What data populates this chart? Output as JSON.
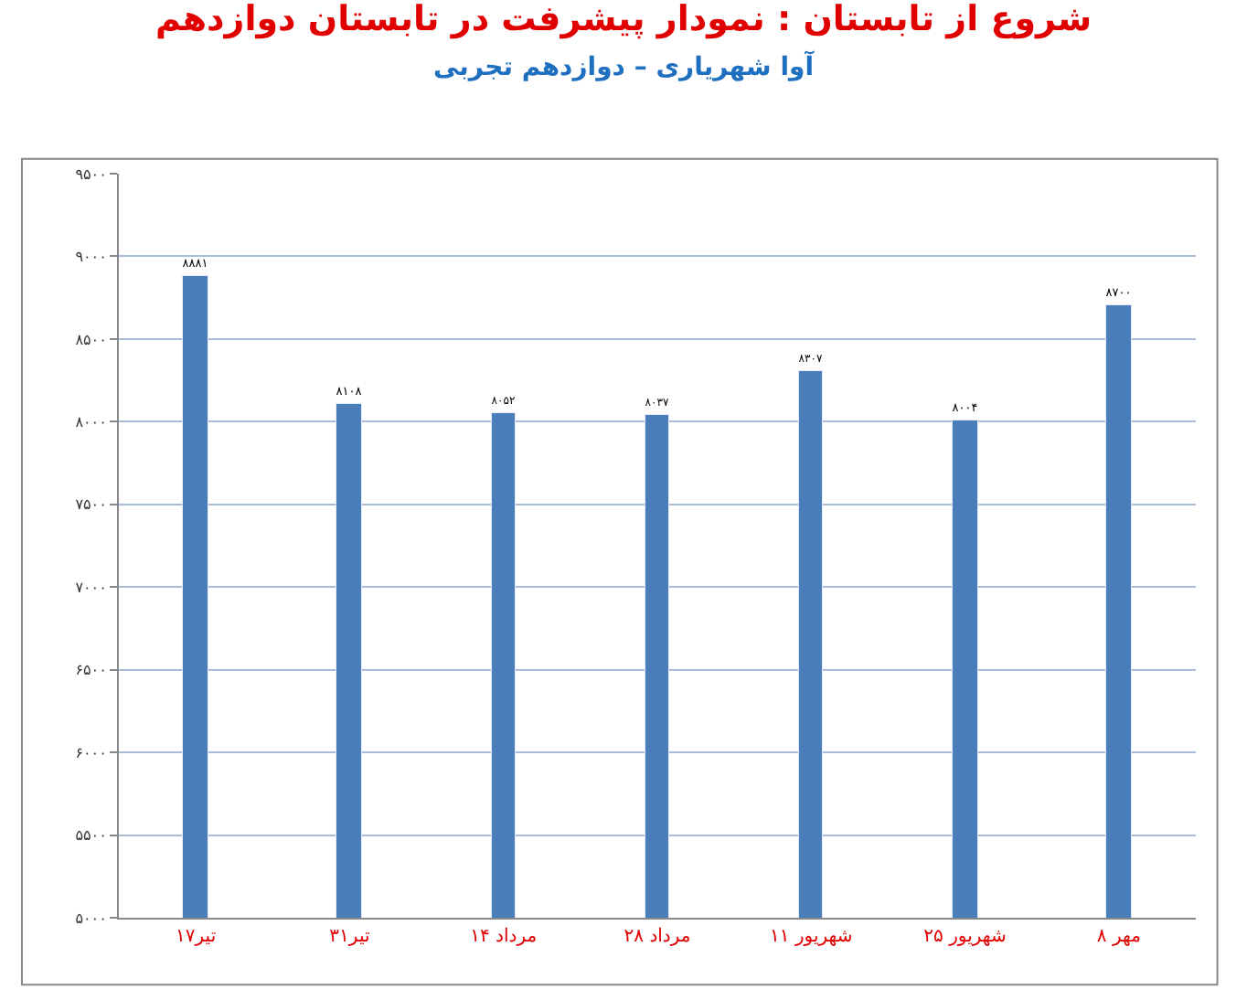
{
  "chart_data": {
    "type": "bar",
    "title": "شروع از تابستان : نمودار پیشرفت در تابستان دوازدهم",
    "subtitle": "آوا شهریاری – دوازدهم تجربی",
    "categories": [
      "۱۷تیر",
      "۳۱تیر",
      "۱۴ مرداد",
      "۲۸ مرداد",
      "۱۱ شهریور",
      "۲۵ شهریور",
      "۸ مهر"
    ],
    "values": [
      8881,
      8108,
      8052,
      8037,
      8307,
      8004,
      8700
    ],
    "value_labels": [
      "۸۸۸۱",
      "۸۱۰۸",
      "۸۰۵۲",
      "۸۰۳۷",
      "۸۳۰۷",
      "۸۰۰۴",
      "۸۷۰۰"
    ],
    "color": "#4a7ebb",
    "ylim": [
      5000,
      9500
    ],
    "yticks": [
      {
        "value": 5000,
        "label": "۵۰۰۰"
      },
      {
        "value": 5500,
        "label": "۵۵۰۰"
      },
      {
        "value": 6000,
        "label": "۶۰۰۰"
      },
      {
        "value": 6500,
        "label": "۶۵۰۰"
      },
      {
        "value": 7000,
        "label": "۷۰۰۰"
      },
      {
        "value": 7500,
        "label": "۷۵۰۰"
      },
      {
        "value": 8000,
        "label": "۸۰۰۰"
      },
      {
        "value": 8500,
        "label": "۸۵۰۰"
      },
      {
        "value": 9000,
        "label": "۹۰۰۰"
      },
      {
        "value": 9500,
        "label": "۹۵۰۰"
      }
    ],
    "grid": "y"
  }
}
